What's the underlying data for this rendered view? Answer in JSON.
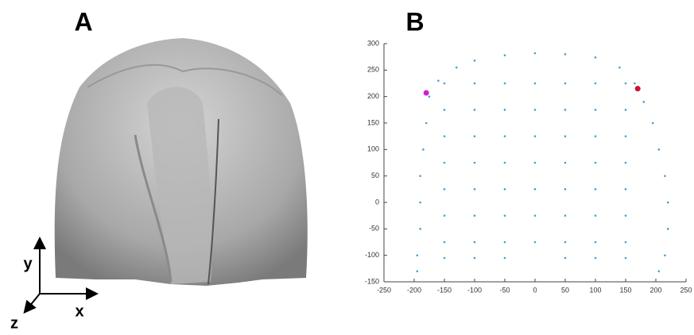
{
  "panel_labels": {
    "a": "A",
    "b": "B"
  },
  "axis_glyph": {
    "x": "x",
    "y": "y",
    "z": "z"
  },
  "chart_data": {
    "type": "scatter",
    "xlim": [
      -250,
      250
    ],
    "ylim": [
      -150,
      300
    ],
    "xticks": [
      -250,
      -200,
      -150,
      -100,
      -50,
      0,
      50,
      100,
      150,
      200,
      250
    ],
    "yticks": [
      -150,
      -100,
      -50,
      0,
      50,
      100,
      150,
      200,
      250,
      300
    ],
    "series": [
      {
        "color": "#4a9ccc",
        "x": [
          -195,
          -195,
          -190,
          -190,
          -190,
          -185,
          -180,
          -175,
          -160,
          -130,
          -100,
          -50,
          0,
          50,
          100,
          140,
          165,
          180,
          195,
          205,
          215,
          220,
          220,
          215,
          205,
          -150,
          -100,
          -50,
          50,
          100,
          150,
          -150,
          -100,
          -50,
          0,
          50,
          100,
          150,
          -150,
          -100,
          -50,
          0,
          50,
          100,
          150,
          -150,
          -100,
          -50,
          0,
          50,
          100,
          150,
          -150,
          -100,
          -50,
          0,
          50,
          100,
          150,
          -150,
          -100,
          -50,
          0,
          50,
          100,
          150,
          -150,
          -100,
          -50,
          0,
          50,
          100,
          150,
          -150,
          -100,
          -50,
          0,
          50,
          100,
          150
        ],
        "y": [
          -130,
          -100,
          -50,
          0,
          50,
          100,
          150,
          200,
          230,
          255,
          268,
          278,
          282,
          280,
          274,
          255,
          225,
          190,
          150,
          100,
          50,
          0,
          -50,
          -100,
          -130,
          -105,
          -105,
          -105,
          -105,
          -105,
          -105,
          -75,
          -75,
          -75,
          -75,
          -75,
          -75,
          -75,
          -25,
          -25,
          -25,
          -25,
          -25,
          -25,
          -25,
          25,
          25,
          25,
          25,
          25,
          25,
          25,
          75,
          75,
          75,
          75,
          75,
          75,
          75,
          125,
          125,
          125,
          125,
          125,
          125,
          125,
          175,
          175,
          175,
          175,
          175,
          175,
          175,
          225,
          225,
          225,
          225,
          225,
          225,
          225
        ]
      },
      {
        "color": "#d020d0",
        "x": [
          -180
        ],
        "y": [
          207
        ]
      },
      {
        "color": "#d01030",
        "x": [
          170
        ],
        "y": [
          215
        ]
      }
    ]
  }
}
